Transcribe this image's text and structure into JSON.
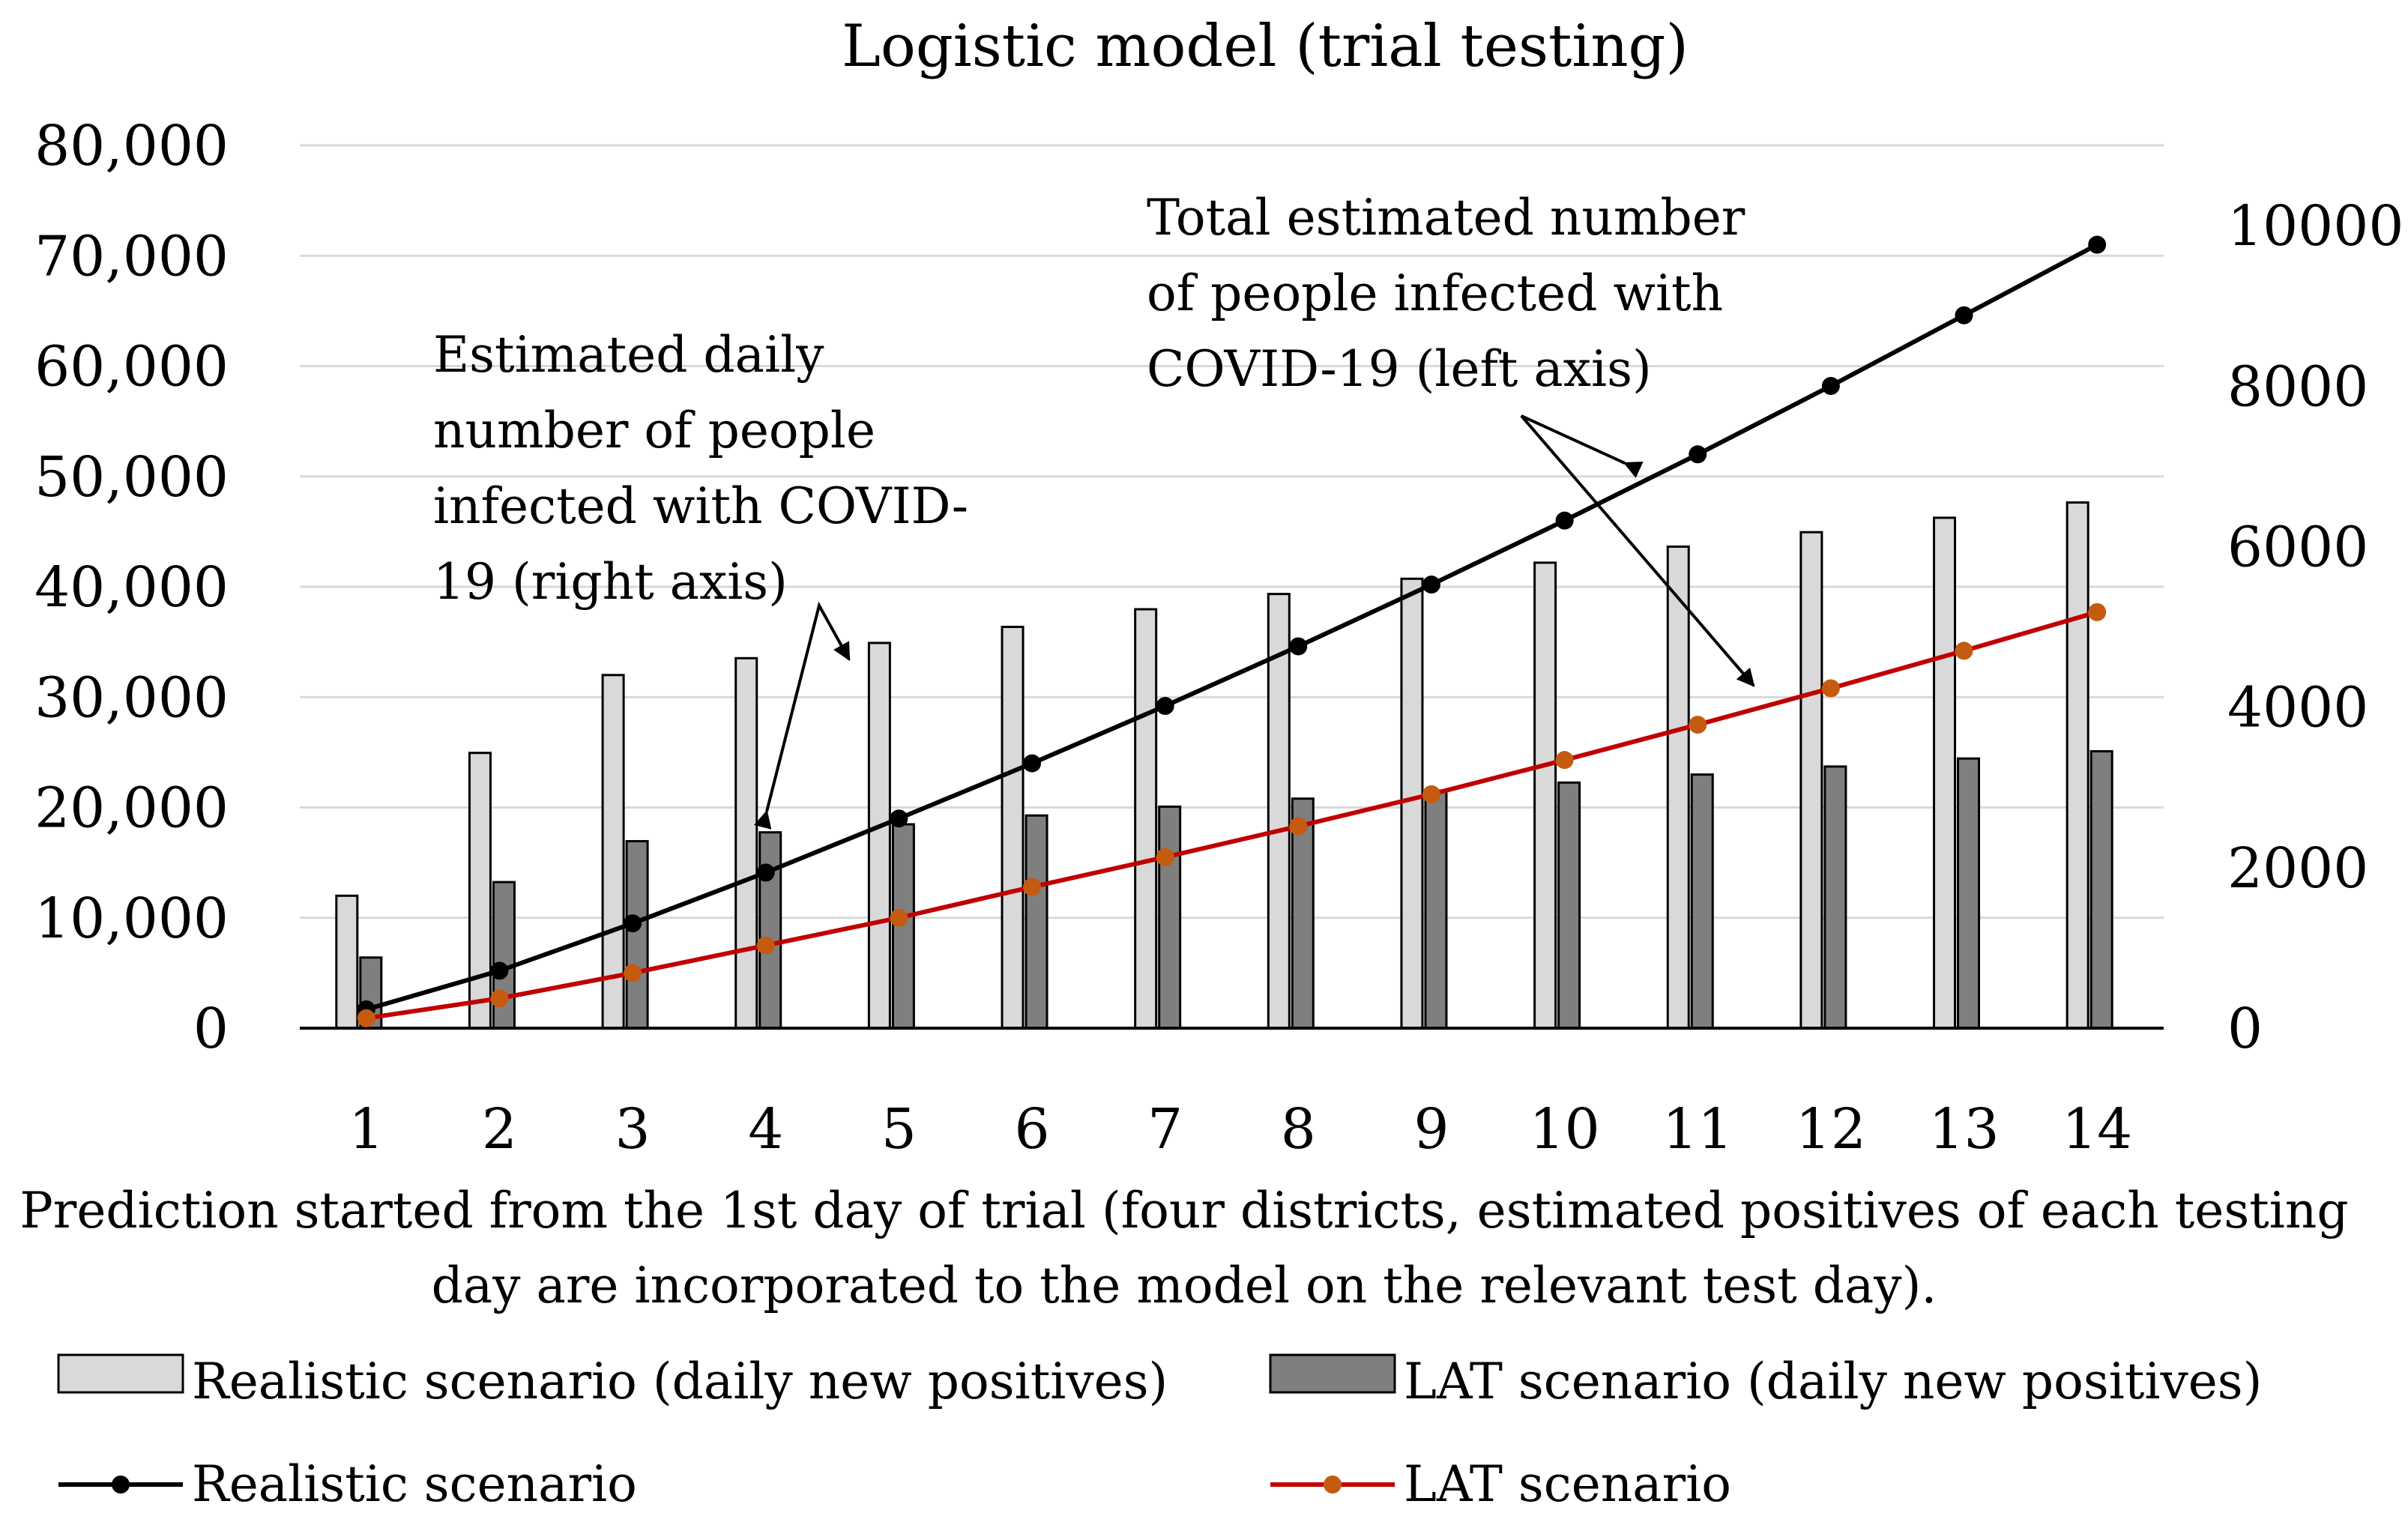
{
  "chart_data": {
    "type": "bar",
    "title": "Logistic model (trial testing)",
    "xlabel": "Prediction started from the 1st day of trial (four districts, estimated positives of each testing day are incorporated to the model on the relevant test day).",
    "xlabel_lines": [
      "Prediction started from the 1st day of trial (four districts, estimated positives of each testing",
      "day are incorporated to the model on the relevant test day)."
    ],
    "categories": [
      "1",
      "2",
      "3",
      "4",
      "5",
      "6",
      "7",
      "8",
      "9",
      "10",
      "11",
      "12",
      "13",
      "14"
    ],
    "left_axis": {
      "ylim": [
        0,
        80000
      ],
      "ticks": [
        0,
        10000,
        20000,
        30000,
        40000,
        50000,
        60000,
        70000,
        80000
      ],
      "tick_labels": [
        "0",
        "10,000",
        "20,000",
        "30,000",
        "40,000",
        "50,000",
        "60,000",
        "70,000",
        "80,000"
      ],
      "grid": true
    },
    "right_axis": {
      "ylim": [
        0,
        11000
      ],
      "ticks": [
        0,
        2000,
        4000,
        6000,
        8000,
        10000
      ],
      "tick_labels": [
        "0",
        "2000",
        "4000",
        "6000",
        "8000",
        "10000"
      ]
    },
    "series": [
      {
        "name": "Realistic scenario (daily new positives)",
        "kind": "bar",
        "axis": "right",
        "color": "#d9d9d9",
        "values": [
          1650,
          3430,
          4400,
          4610,
          4800,
          5000,
          5220,
          5410,
          5600,
          5800,
          6000,
          6180,
          6360,
          6550
        ]
      },
      {
        "name": "LAT scenario (daily new positives)",
        "kind": "bar",
        "axis": "right",
        "color": "#7f7f7f",
        "values": [
          880,
          1820,
          2330,
          2440,
          2540,
          2650,
          2760,
          2860,
          2960,
          3060,
          3160,
          3260,
          3360,
          3450
        ]
      },
      {
        "name": "Realistic scenario",
        "kind": "line",
        "axis": "left",
        "color": "#000000",
        "values": [
          1700,
          5200,
          9500,
          14100,
          19000,
          24000,
          29200,
          34600,
          40200,
          46000,
          52000,
          58200,
          64600,
          71000
        ]
      },
      {
        "name": "LAT scenario",
        "kind": "line",
        "axis": "left",
        "color": "#c00000",
        "marker_color": "#c55a11",
        "values": [
          900,
          2700,
          5000,
          7500,
          10000,
          12800,
          15500,
          18300,
          21200,
          24300,
          27500,
          30800,
          34200,
          37700
        ]
      }
    ],
    "annotations": [
      {
        "id": "daily",
        "lines": [
          "Estimated daily",
          "number of people",
          "infected with COVID-",
          "19 (right axis)"
        ]
      },
      {
        "id": "total",
        "lines": [
          "Total estimated number",
          "of people infected with",
          "COVID-19 (left axis)"
        ]
      }
    ],
    "legend_position": "bottom"
  }
}
